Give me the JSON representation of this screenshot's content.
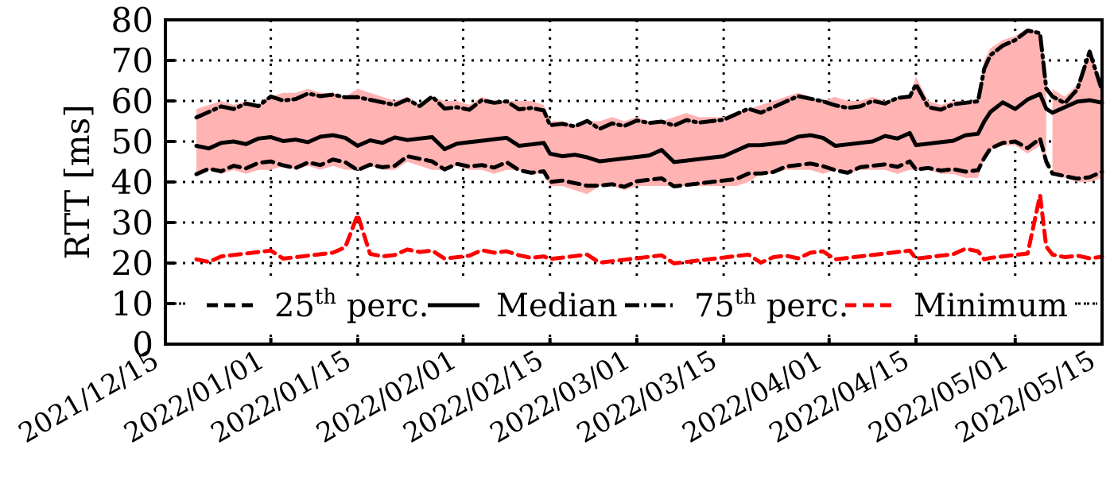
{
  "chart_data": {
    "type": "line",
    "title": "",
    "xlabel": "",
    "ylabel": "RTT [ms]",
    "ylim": [
      0,
      80
    ],
    "yticks": [
      0,
      10,
      20,
      30,
      40,
      50,
      60,
      70,
      80
    ],
    "xlim_dates": [
      "2021/12/15",
      "2022/05/15"
    ],
    "xtick_labels": [
      "2021/12/15",
      "2022/01/01",
      "2022/01/15",
      "2022/02/01",
      "2022/02/15",
      "2022/03/01",
      "2022/03/15",
      "2022/04/01",
      "2022/04/15",
      "2022/05/01",
      "2022/05/15"
    ],
    "xtick_days": [
      0,
      17,
      31,
      48,
      62,
      76,
      90,
      107,
      121,
      137,
      151
    ],
    "grid": true,
    "grid_style": "dotted",
    "legend_position": "inside bottom",
    "band_color": "#FFB3B3",
    "x_unit": "days since 2021/12/15",
    "x": [
      5,
      7,
      9,
      11,
      13,
      15,
      17,
      19,
      21,
      23,
      25,
      27,
      29,
      31,
      33,
      35,
      37,
      39,
      41,
      43,
      45,
      47,
      49,
      51,
      53,
      55,
      57,
      59,
      61,
      62,
      64,
      66,
      68,
      70,
      72,
      74,
      76,
      78,
      80,
      82,
      84,
      86,
      88,
      90,
      92,
      94,
      96,
      98,
      100,
      102,
      104,
      106,
      108,
      110,
      112,
      114,
      116,
      118,
      120,
      121,
      123,
      125,
      127,
      129,
      131,
      132,
      133,
      135,
      137,
      139,
      141,
      142,
      143,
      145,
      147,
      149,
      151
    ],
    "series": [
      {
        "name": "25th perc.",
        "style": "dashed",
        "color": "#000000",
        "values": [
          43,
          44,
          43,
          44,
          43,
          44,
          44,
          45,
          44,
          45,
          44,
          45,
          44,
          44,
          45,
          44,
          44,
          46,
          45,
          44,
          44,
          45,
          44,
          44,
          43,
          44,
          44,
          43,
          43,
          40,
          40,
          39,
          38,
          40,
          40,
          39,
          40,
          40,
          40,
          40,
          40,
          40,
          40,
          40,
          40,
          41,
          43,
          43,
          44,
          44,
          44,
          43,
          44,
          43,
          44,
          44,
          44,
          43,
          44,
          44,
          44,
          43,
          43,
          42,
          42,
          47,
          49,
          50,
          50,
          48,
          50,
          44,
          43,
          42,
          41,
          41,
          42
        ]
      },
      {
        "name": "Median",
        "style": "solid",
        "color": "#000000",
        "values": [
          50,
          49,
          50,
          50,
          49,
          50,
          50,
          51,
          51,
          50,
          51,
          51,
          50,
          50,
          51,
          50,
          51,
          50,
          50,
          50,
          49,
          50,
          50,
          50,
          50,
          50,
          50,
          50,
          50,
          47,
          46,
          46,
          45,
          46,
          46,
          46,
          46,
          46,
          47,
          46,
          46,
          46,
          46,
          46,
          47,
          48,
          50,
          50,
          50,
          51,
          51,
          50,
          50,
          50,
          50,
          50,
          51,
          50,
          51,
          50,
          50,
          50,
          50,
          51,
          51,
          56,
          58,
          60,
          58,
          60,
          61,
          57,
          58,
          59,
          60,
          60,
          59
        ]
      },
      {
        "name": "75th perc.",
        "style": "dashdot",
        "color": "#000000",
        "values": [
          57,
          58,
          59,
          58,
          59,
          58,
          60,
          61,
          61,
          62,
          61,
          61,
          60,
          62,
          61,
          60,
          59,
          60,
          58,
          60,
          59,
          59,
          58,
          60,
          59,
          59,
          59,
          59,
          58,
          54,
          54,
          53,
          54,
          54,
          55,
          54,
          55,
          54,
          54,
          55,
          56,
          55,
          55,
          55,
          56,
          57,
          58,
          59,
          60,
          61,
          60,
          59,
          60,
          59,
          59,
          60,
          59,
          60,
          60,
          65,
          59,
          58,
          59,
          59,
          59,
          69,
          72,
          74,
          75,
          77,
          76,
          62,
          62,
          60,
          63,
          72,
          62
        ]
      },
      {
        "name": "Minimum",
        "style": "dashed",
        "color": "#FF0000",
        "values": [
          22,
          21,
          22,
          22,
          22,
          22,
          22,
          22,
          22,
          22,
          22,
          22,
          23,
          33,
          23,
          22,
          22,
          23,
          22,
          22,
          22,
          22,
          22,
          23,
          22,
          22,
          23,
          22,
          22,
          21,
          21,
          21,
          21,
          21,
          21,
          21,
          21,
          21,
          21,
          21,
          21,
          21,
          21,
          21,
          21,
          21,
          21,
          22,
          22,
          21,
          22,
          22,
          22,
          22,
          22,
          22,
          22,
          22,
          22,
          22,
          22,
          22,
          22,
          23,
          22,
          22,
          22,
          22,
          22,
          22,
          36,
          23,
          23,
          22,
          22,
          21,
          21
        ]
      }
    ],
    "band": {
      "lower": "25th perc.",
      "upper": "75th perc.",
      "gap_after_day": 142
    }
  },
  "axes": {
    "ylabel": "RTT [ms]"
  },
  "legend": {
    "items": [
      {
        "key": "p25",
        "base": "25",
        "sup": "th",
        "rest": " perc."
      },
      {
        "key": "median",
        "base": "Median",
        "sup": "",
        "rest": ""
      },
      {
        "key": "p75",
        "base": "75",
        "sup": "th",
        "rest": " perc."
      },
      {
        "key": "min",
        "base": "Minimum",
        "sup": "",
        "rest": ""
      }
    ]
  }
}
